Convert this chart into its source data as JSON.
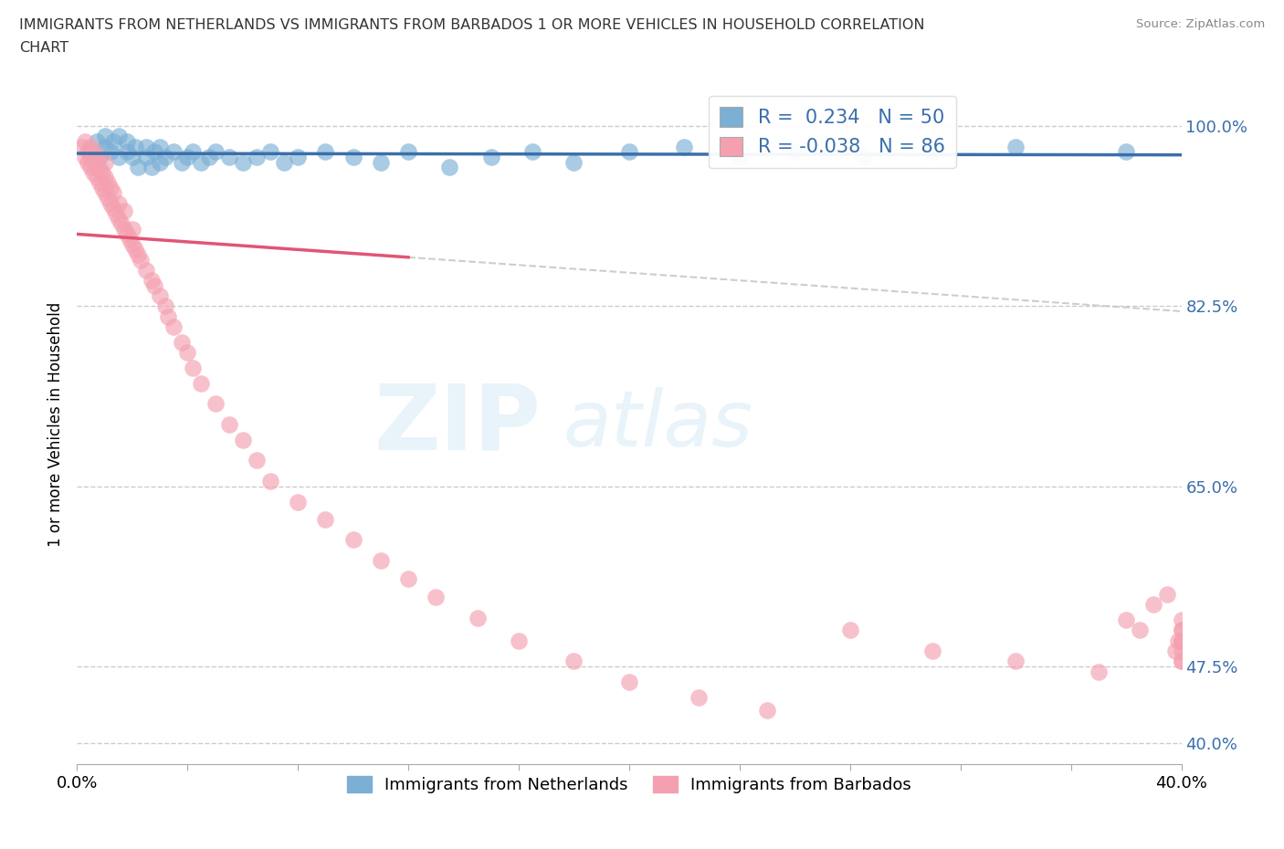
{
  "title_line1": "IMMIGRANTS FROM NETHERLANDS VS IMMIGRANTS FROM BARBADOS 1 OR MORE VEHICLES IN HOUSEHOLD CORRELATION",
  "title_line2": "CHART",
  "source": "Source: ZipAtlas.com",
  "ylabel": "1 or more Vehicles in Household",
  "xlim": [
    0.0,
    0.4
  ],
  "ylim": [
    0.38,
    1.04
  ],
  "ytick_vals": [
    1.0,
    0.825,
    0.65,
    0.475,
    0.4
  ],
  "ytick_labels": [
    "100.0%",
    "82.5%",
    "65.0%",
    "47.5%",
    "40.0%"
  ],
  "xtick_val_left": 0.0,
  "xtick_label_left": "0.0%",
  "xtick_val_right": 0.4,
  "xtick_label_right": "40.0%",
  "netherlands_R": 0.234,
  "netherlands_N": 50,
  "barbados_R": -0.038,
  "barbados_N": 86,
  "netherlands_color": "#7bafd4",
  "barbados_color": "#f4a0b0",
  "netherlands_line_color": "#3a6faa",
  "barbados_line_color": "#e05575",
  "barbados_dashed_color": "#c8c8c8",
  "legend_netherlands": "Immigrants from Netherlands",
  "legend_barbados": "Immigrants from Barbados",
  "watermark": "ZIPatlas",
  "netherlands_x": [
    0.005,
    0.007,
    0.008,
    0.01,
    0.01,
    0.012,
    0.013,
    0.015,
    0.015,
    0.018,
    0.018,
    0.02,
    0.021,
    0.022,
    0.025,
    0.025,
    0.027,
    0.028,
    0.03,
    0.03,
    0.032,
    0.035,
    0.038,
    0.04,
    0.042,
    0.045,
    0.048,
    0.05,
    0.055,
    0.06,
    0.065,
    0.07,
    0.075,
    0.08,
    0.09,
    0.1,
    0.11,
    0.12,
    0.135,
    0.15,
    0.165,
    0.18,
    0.2,
    0.22,
    0.24,
    0.26,
    0.285,
    0.31,
    0.34,
    0.38
  ],
  "netherlands_y": [
    0.975,
    0.985,
    0.97,
    0.98,
    0.99,
    0.975,
    0.985,
    0.97,
    0.99,
    0.975,
    0.985,
    0.97,
    0.98,
    0.96,
    0.97,
    0.98,
    0.96,
    0.975,
    0.965,
    0.98,
    0.97,
    0.975,
    0.965,
    0.97,
    0.975,
    0.965,
    0.97,
    0.975,
    0.97,
    0.965,
    0.97,
    0.975,
    0.965,
    0.97,
    0.975,
    0.97,
    0.965,
    0.975,
    0.96,
    0.97,
    0.975,
    0.965,
    0.975,
    0.98,
    0.97,
    0.975,
    0.97,
    0.975,
    0.98,
    0.975
  ],
  "barbados_x": [
    0.002,
    0.003,
    0.003,
    0.004,
    0.004,
    0.005,
    0.005,
    0.005,
    0.006,
    0.006,
    0.006,
    0.007,
    0.007,
    0.007,
    0.008,
    0.008,
    0.009,
    0.009,
    0.01,
    0.01,
    0.01,
    0.011,
    0.011,
    0.012,
    0.012,
    0.013,
    0.013,
    0.014,
    0.015,
    0.015,
    0.016,
    0.017,
    0.017,
    0.018,
    0.019,
    0.02,
    0.02,
    0.021,
    0.022,
    0.023,
    0.025,
    0.027,
    0.028,
    0.03,
    0.032,
    0.033,
    0.035,
    0.038,
    0.04,
    0.042,
    0.045,
    0.05,
    0.055,
    0.06,
    0.065,
    0.07,
    0.08,
    0.09,
    0.1,
    0.11,
    0.12,
    0.13,
    0.145,
    0.16,
    0.18,
    0.2,
    0.225,
    0.25,
    0.28,
    0.31,
    0.34,
    0.37,
    0.38,
    0.385,
    0.39,
    0.395,
    0.398,
    0.399,
    0.4,
    0.4,
    0.4,
    0.4,
    0.4,
    0.4,
    0.4,
    0.4
  ],
  "barbados_y": [
    0.98,
    0.97,
    0.985,
    0.965,
    0.975,
    0.96,
    0.97,
    0.98,
    0.955,
    0.968,
    0.975,
    0.95,
    0.962,
    0.972,
    0.945,
    0.958,
    0.94,
    0.955,
    0.935,
    0.95,
    0.965,
    0.93,
    0.945,
    0.925,
    0.94,
    0.92,
    0.935,
    0.915,
    0.91,
    0.925,
    0.905,
    0.9,
    0.918,
    0.895,
    0.89,
    0.885,
    0.9,
    0.88,
    0.875,
    0.87,
    0.86,
    0.85,
    0.845,
    0.835,
    0.825,
    0.815,
    0.805,
    0.79,
    0.78,
    0.765,
    0.75,
    0.73,
    0.71,
    0.695,
    0.675,
    0.655,
    0.635,
    0.618,
    0.598,
    0.578,
    0.56,
    0.542,
    0.522,
    0.5,
    0.48,
    0.46,
    0.445,
    0.432,
    0.51,
    0.49,
    0.48,
    0.47,
    0.52,
    0.51,
    0.535,
    0.545,
    0.49,
    0.5,
    0.51,
    0.48,
    0.49,
    0.52,
    0.5,
    0.51,
    0.48,
    0.5
  ]
}
